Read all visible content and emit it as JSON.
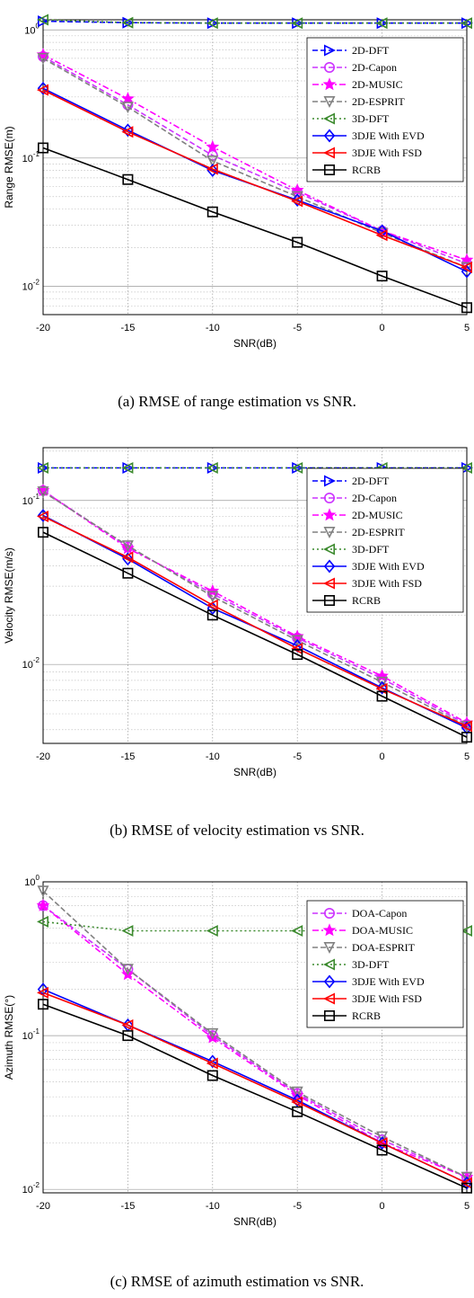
{
  "captions": [
    "(a) RMSE of range estimation vs SNR.",
    "(b) RMSE of velocity estimation vs SNR.",
    "(c) RMSE of azimuth estimation vs SNR."
  ],
  "chart_data": [
    {
      "type": "line",
      "xlabel": "SNR(dB)",
      "ylabel": "Range RMSE(m)",
      "yscale": "log",
      "xlim": [
        -20,
        5
      ],
      "ylim": [
        0.006,
        1.2
      ],
      "x": [
        -20,
        -15,
        -10,
        -5,
        0,
        5
      ],
      "xticks": [
        "-20",
        "-15",
        "-10",
        "-5",
        "0",
        "5"
      ],
      "grid": true,
      "legend_position": "top-right",
      "series": [
        {
          "name": "2D-DFT",
          "values": [
            1.17,
            1.14,
            1.13,
            1.13,
            1.13,
            1.13
          ],
          "color": "#0000ff",
          "dash": "dashed",
          "marker": "triangle-right"
        },
        {
          "name": "2D-Capon",
          "values": [
            0.62,
            0.26,
            0.105,
            0.054,
            0.027,
            0.015
          ],
          "color": "#cc33ff",
          "dash": "dashed",
          "marker": "circle"
        },
        {
          "name": "2D-MUSIC",
          "values": [
            0.64,
            0.29,
            0.122,
            0.056,
            0.027,
            0.016
          ],
          "color": "#ff00ff",
          "dash": "dashdot",
          "marker": "star"
        },
        {
          "name": "2D-ESPRIT",
          "values": [
            0.6,
            0.25,
            0.095,
            0.05,
            0.026,
            0.014
          ],
          "color": "#808080",
          "dash": "dashed",
          "marker": "triangle-down"
        },
        {
          "name": "3D-DFT",
          "values": [
            1.2,
            1.14,
            1.13,
            1.13,
            1.13,
            1.13
          ],
          "color": "#3c8a2e",
          "dash": "dotted",
          "marker": "triangle-left"
        },
        {
          "name": "3DJE With EVD",
          "values": [
            0.35,
            0.165,
            0.08,
            0.047,
            0.027,
            0.013
          ],
          "color": "#0000ff",
          "dash": "solid",
          "marker": "diamond"
        },
        {
          "name": "3DJE With FSD",
          "values": [
            0.34,
            0.16,
            0.082,
            0.046,
            0.025,
            0.014
          ],
          "color": "#ff0000",
          "dash": "solid",
          "marker": "triangle-left"
        },
        {
          "name": "RCRB",
          "values": [
            0.12,
            0.068,
            0.038,
            0.022,
            0.012,
            0.0068
          ],
          "color": "#000000",
          "dash": "solid",
          "marker": "square"
        }
      ]
    },
    {
      "type": "line",
      "xlabel": "SNR(dB)",
      "ylabel": "Velocity RMSE(m/s)",
      "yscale": "log",
      "xlim": [
        -20,
        5
      ],
      "ylim": [
        0.0033,
        0.21
      ],
      "x": [
        -20,
        -15,
        -10,
        -5,
        0,
        5
      ],
      "xticks": [
        "-20",
        "-15",
        "-10",
        "-5",
        "0",
        "5"
      ],
      "grid": true,
      "legend_position": "top-right",
      "series": [
        {
          "name": "2D-DFT",
          "values": [
            0.158,
            0.158,
            0.158,
            0.158,
            0.158,
            0.158
          ],
          "color": "#0000ff",
          "dash": "dashed",
          "marker": "triangle-right"
        },
        {
          "name": "2D-Capon",
          "values": [
            0.115,
            0.052,
            0.027,
            0.0145,
            0.0082,
            0.0043
          ],
          "color": "#cc33ff",
          "dash": "dashed",
          "marker": "circle"
        },
        {
          "name": "2D-MUSIC",
          "values": [
            0.115,
            0.051,
            0.028,
            0.0148,
            0.0085,
            0.0044
          ],
          "color": "#ff00ff",
          "dash": "dashdot",
          "marker": "star"
        },
        {
          "name": "2D-ESPRIT",
          "values": [
            0.113,
            0.053,
            0.026,
            0.014,
            0.0078,
            0.0042
          ],
          "color": "#808080",
          "dash": "dashed",
          "marker": "triangle-down"
        },
        {
          "name": "3D-DFT",
          "values": [
            0.158,
            0.158,
            0.158,
            0.158,
            0.158,
            0.158
          ],
          "color": "#3c8a2e",
          "dash": "dotted",
          "marker": "triangle-left"
        },
        {
          "name": "3DJE With EVD",
          "values": [
            0.081,
            0.044,
            0.022,
            0.013,
            0.0072,
            0.0041
          ],
          "color": "#0000ff",
          "dash": "solid",
          "marker": "diamond"
        },
        {
          "name": "3DJE With FSD",
          "values": [
            0.08,
            0.045,
            0.023,
            0.0125,
            0.0071,
            0.0042
          ],
          "color": "#ff0000",
          "dash": "solid",
          "marker": "triangle-left"
        },
        {
          "name": "RCRB",
          "values": [
            0.064,
            0.036,
            0.02,
            0.0115,
            0.0064,
            0.0036
          ],
          "color": "#000000",
          "dash": "solid",
          "marker": "square"
        }
      ]
    },
    {
      "type": "line",
      "xlabel": "SNR(dB)",
      "ylabel": "Azimuth RMSE(°)",
      "yscale": "log",
      "xlim": [
        -20,
        5
      ],
      "ylim": [
        0.0095,
        1.0
      ],
      "x": [
        -20,
        -15,
        -10,
        -5,
        0,
        5
      ],
      "xticks": [
        "-20",
        "-15",
        "-10",
        "-5",
        "0",
        "5"
      ],
      "grid": true,
      "legend_position": "top-right",
      "series": [
        {
          "name": "DOA-Capon",
          "values": [
            0.7,
            0.27,
            0.1,
            0.042,
            0.021,
            0.012
          ],
          "color": "#cc33ff",
          "dash": "dashed",
          "marker": "circle"
        },
        {
          "name": "DOA-MUSIC",
          "values": [
            0.7,
            0.25,
            0.097,
            0.041,
            0.02,
            0.012
          ],
          "color": "#ff00ff",
          "dash": "dashdot",
          "marker": "star"
        },
        {
          "name": "DOA-ESPRIT",
          "values": [
            0.87,
            0.27,
            0.103,
            0.043,
            0.022,
            0.012
          ],
          "color": "#808080",
          "dash": "dashed",
          "marker": "triangle-down"
        },
        {
          "name": "3D-DFT",
          "values": [
            0.55,
            0.48,
            0.48,
            0.48,
            0.48,
            0.48
          ],
          "color": "#3c8a2e",
          "dash": "dotted",
          "marker": "triangle-left"
        },
        {
          "name": "3DJE With EVD",
          "values": [
            0.2,
            0.117,
            0.068,
            0.038,
            0.02,
            0.011
          ],
          "color": "#0000ff",
          "dash": "solid",
          "marker": "diamond"
        },
        {
          "name": "3DJE With FSD",
          "values": [
            0.19,
            0.117,
            0.066,
            0.037,
            0.02,
            0.011
          ],
          "color": "#ff0000",
          "dash": "solid",
          "marker": "triangle-left"
        },
        {
          "name": "RCRB",
          "values": [
            0.16,
            0.1,
            0.055,
            0.032,
            0.018,
            0.0102
          ],
          "color": "#000000",
          "dash": "solid",
          "marker": "square"
        }
      ]
    }
  ]
}
